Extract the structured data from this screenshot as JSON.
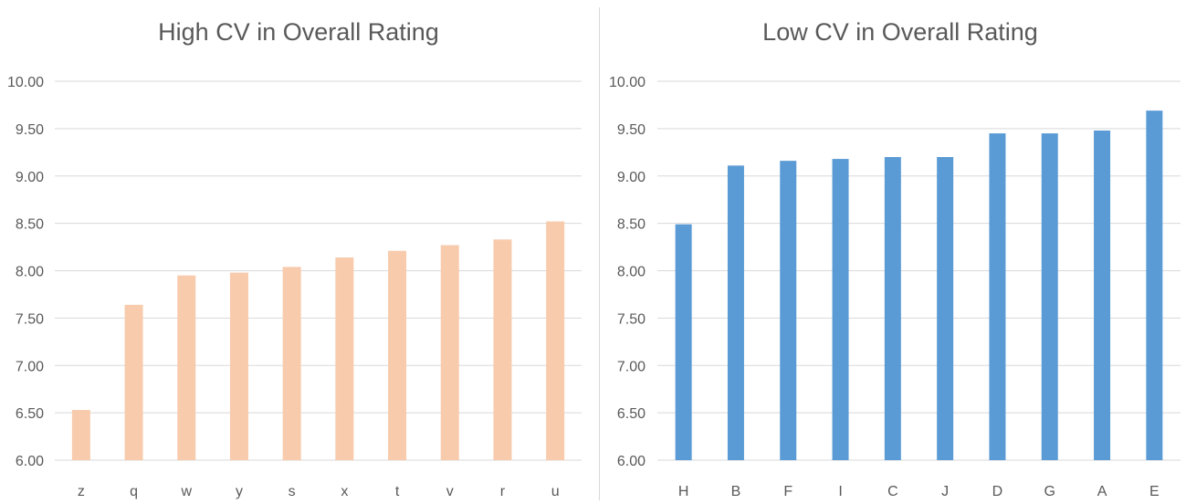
{
  "chart_data": [
    {
      "type": "bar",
      "title": "High CV in Overall Rating",
      "categories": [
        "z",
        "q",
        "w",
        "y",
        "s",
        "x",
        "t",
        "v",
        "r",
        "u"
      ],
      "values": [
        6.53,
        7.64,
        7.95,
        7.98,
        8.04,
        8.14,
        8.21,
        8.27,
        8.33,
        8.52
      ],
      "ylim": [
        6.0,
        10.0
      ],
      "yticks": [
        "6.00",
        "6.50",
        "7.00",
        "7.50",
        "8.00",
        "8.50",
        "9.00",
        "9.50",
        "10.00"
      ],
      "ytick_values": [
        6.0,
        6.5,
        7.0,
        7.5,
        8.0,
        8.5,
        9.0,
        9.5,
        10.0
      ],
      "grid": true,
      "bar_color": "#f8cbad",
      "xlabel": "",
      "ylabel": ""
    },
    {
      "type": "bar",
      "title": "Low CV in Overall Rating",
      "categories": [
        "H",
        "B",
        "F",
        "I",
        "C",
        "J",
        "D",
        "G",
        "A",
        "E"
      ],
      "values": [
        8.49,
        9.11,
        9.16,
        9.18,
        9.2,
        9.2,
        9.45,
        9.45,
        9.48,
        9.69
      ],
      "ylim": [
        6.0,
        10.0
      ],
      "yticks": [
        "6.00",
        "6.50",
        "7.00",
        "7.50",
        "8.00",
        "8.50",
        "9.00",
        "9.50",
        "10.00"
      ],
      "ytick_values": [
        6.0,
        6.5,
        7.0,
        7.5,
        8.0,
        8.5,
        9.0,
        9.5,
        10.0
      ],
      "grid": true,
      "bar_color": "#5b9bd5",
      "xlabel": "",
      "ylabel": ""
    }
  ]
}
